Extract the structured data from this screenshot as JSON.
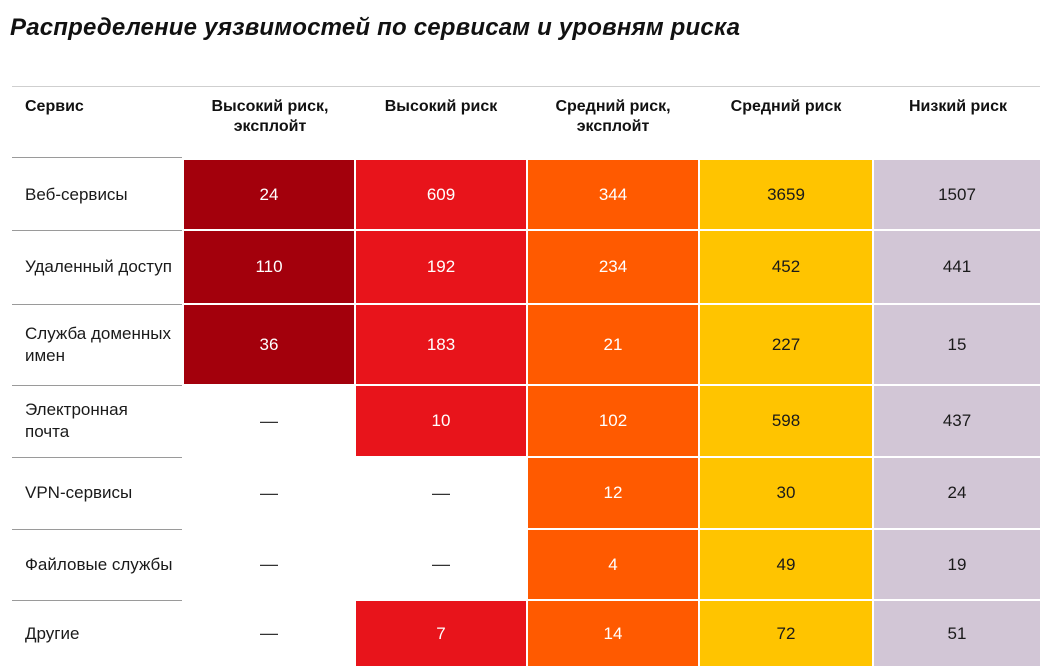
{
  "title": "Распределение уязвимостей по сервисам и уровням риска",
  "chart_data": {
    "type": "heatmap",
    "title": "Распределение уязвимостей по сервисам и уровням риска",
    "row_header": "Сервис",
    "columns": [
      "Высокий риск, эксплойт",
      "Высокий риск",
      "Средний риск, эксплойт",
      "Средний риск",
      "Низкий риск"
    ],
    "rows": [
      {
        "label": "Веб-сервисы",
        "values": [
          24,
          609,
          344,
          3659,
          1507
        ]
      },
      {
        "label": "Удаленный доступ",
        "values": [
          110,
          192,
          234,
          452,
          441
        ]
      },
      {
        "label": "Служба доменных имен",
        "values": [
          36,
          183,
          21,
          227,
          15
        ]
      },
      {
        "label": "Электронная почта",
        "values": [
          null,
          10,
          102,
          598,
          437
        ]
      },
      {
        "label": "VPN-сервисы",
        "values": [
          null,
          null,
          12,
          30,
          24
        ]
      },
      {
        "label": "Файловые службы",
        "values": [
          null,
          null,
          4,
          49,
          19
        ]
      },
      {
        "label": "Другие",
        "values": [
          null,
          7,
          14,
          72,
          51
        ]
      }
    ],
    "empty_symbol": "—",
    "column_colors": [
      "#a3000c",
      "#e8141b",
      "#ff5a00",
      "#ffc400",
      "#d2c6d6"
    ],
    "column_text_colors": [
      "light",
      "light",
      "light",
      "dark",
      "dark"
    ]
  }
}
